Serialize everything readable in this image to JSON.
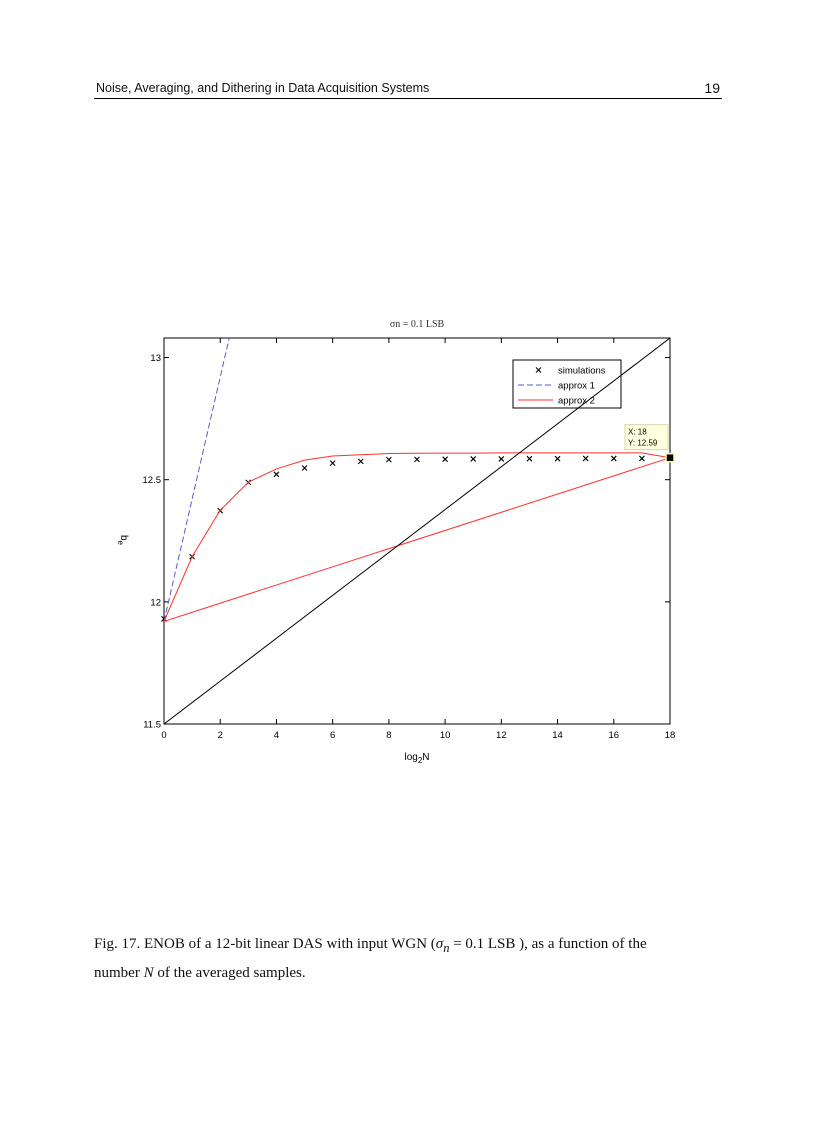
{
  "header": {
    "title": "Noise, Averaging, and Dithering in Data Acquisition Systems",
    "page_number": "19"
  },
  "caption": {
    "part1": "Fig. 17. ENOB of a 12-bit linear DAS with input WGN (",
    "sigma": "σ",
    "sigma_sub": "n",
    "part2": " = 0.1 LSB ), as a function of the",
    "part3": "number ",
    "N": "N",
    "part4": " of the averaged samples."
  },
  "chart_data": {
    "type": "line",
    "title": "σn = 0.1 LSB",
    "xlabel": "log2N",
    "ylabel": "be",
    "xlim": [
      0,
      18
    ],
    "ylim": [
      11.5,
      13.08
    ],
    "xticks": [
      "0",
      "2",
      "4",
      "6",
      "8",
      "10",
      "12",
      "14",
      "16",
      "18"
    ],
    "yticks": [
      "11.5",
      "12",
      "12.5",
      "13"
    ],
    "grid": false,
    "legend_position": "top-right",
    "series": [
      {
        "name": "simulations",
        "style": "x-markers",
        "color": "#000000",
        "x": [
          0,
          1,
          2,
          3,
          4,
          5,
          6,
          7,
          8,
          9,
          10,
          11,
          12,
          13,
          14,
          15,
          16,
          17
        ],
        "y": [
          11.93,
          12.185,
          12.373,
          12.489,
          12.522,
          12.548,
          12.568,
          12.575,
          12.582,
          12.583,
          12.584,
          12.585,
          12.585,
          12.586,
          12.586,
          12.587,
          12.587,
          12.587
        ]
      },
      {
        "name": "approx 1",
        "style": "dashed",
        "color": "#5a5ad0",
        "x": [
          0,
          2.32
        ],
        "y": [
          11.92,
          13.08
        ]
      },
      {
        "name": "approx 2",
        "style": "solid",
        "color": "#ff3030",
        "x": [
          0,
          1,
          2,
          3,
          4,
          5,
          6,
          7,
          8,
          9,
          10,
          11,
          12,
          13,
          14,
          15,
          16,
          17,
          18,
          0
        ],
        "y": [
          11.92,
          12.185,
          12.375,
          12.49,
          12.544,
          12.58,
          12.597,
          12.602,
          12.607,
          12.608,
          12.609,
          12.609,
          12.61,
          12.61,
          12.61,
          12.61,
          12.61,
          12.61,
          12.59,
          11.92
        ]
      },
      {
        "style": "solid",
        "color": "#000000",
        "x": [
          0,
          18
        ],
        "y": [
          11.5,
          13.08
        ]
      }
    ],
    "datatip": {
      "x": 18,
      "y": 12.59,
      "x_label": "X: 18",
      "y_label": "Y: 12.59"
    }
  }
}
